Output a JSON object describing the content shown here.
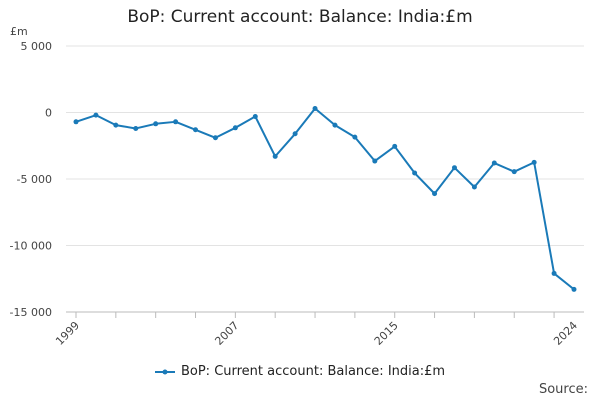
{
  "chart_data": {
    "type": "line",
    "title": "BoP: Current account: Balance: India:£m",
    "unit_label": "£m",
    "x": [
      1999,
      2000,
      2001,
      2002,
      2003,
      2004,
      2005,
      2006,
      2007,
      2008,
      2009,
      2010,
      2011,
      2012,
      2013,
      2014,
      2015,
      2016,
      2017,
      2018,
      2019,
      2020,
      2021,
      2022,
      2023,
      2024
    ],
    "x_tick_labels": [
      "1999",
      "2007",
      "2015",
      "2024"
    ],
    "x_tick_values": [
      1999,
      2007,
      2015,
      2024
    ],
    "xlim": [
      1999,
      2024
    ],
    "y_tick_labels": [
      "5 000",
      "0",
      "-5 000",
      "-10 000",
      "-15 000"
    ],
    "y_tick_values": [
      5000,
      0,
      -5000,
      -10000,
      -15000
    ],
    "ylim": [
      -15000,
      5000
    ],
    "grid": "horizontal",
    "legend_position": "bottom",
    "series": [
      {
        "name": "BoP: Current account: Balance: India:£m",
        "color": "#1a7ab8",
        "values": [
          -700,
          -200,
          -950,
          -1200,
          -850,
          -700,
          -1300,
          -1900,
          -1150,
          -300,
          -3300,
          -1600,
          300,
          -950,
          -1850,
          -3650,
          -2550,
          -4550,
          -6100,
          -4150,
          -5600,
          -3800,
          -4450,
          -3750,
          -12100,
          -13300
        ]
      }
    ],
    "source_label": "Source:"
  }
}
